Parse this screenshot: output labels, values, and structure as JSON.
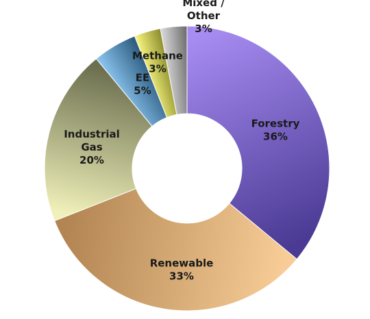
{
  "chart_data": {
    "type": "pie",
    "variant": "donut",
    "title": "",
    "slices": [
      {
        "label_lines": [
          "Forestry",
          "36%"
        ],
        "value": 36,
        "colors": [
          "#a78cf2",
          "#4a3a93"
        ]
      },
      {
        "label_lines": [
          "Renewable",
          "33%"
        ],
        "value": 33,
        "colors": [
          "#f7cc96",
          "#b28552"
        ]
      },
      {
        "label_lines": [
          "Industrial",
          "Gas",
          "20%"
        ],
        "value": 20,
        "colors": [
          "#f0f1ba",
          "#6d7050"
        ]
      },
      {
        "label_lines": [
          "EE",
          "5%"
        ],
        "value": 5,
        "colors": [
          "#88c2ec",
          "#2e5c80"
        ]
      },
      {
        "label_lines": [
          "Methane",
          "3%"
        ],
        "value": 3,
        "colors": [
          "#f3f27c",
          "#8f8f31"
        ]
      },
      {
        "label_lines": [
          "Mixed /",
          "Other",
          "3%"
        ],
        "value": 3,
        "colors": [
          "#d6d6d6",
          "#6f6f6f"
        ]
      }
    ],
    "start_angle_deg": 0,
    "direction": "clockwise",
    "legend": "none",
    "background": "#ffffff"
  }
}
